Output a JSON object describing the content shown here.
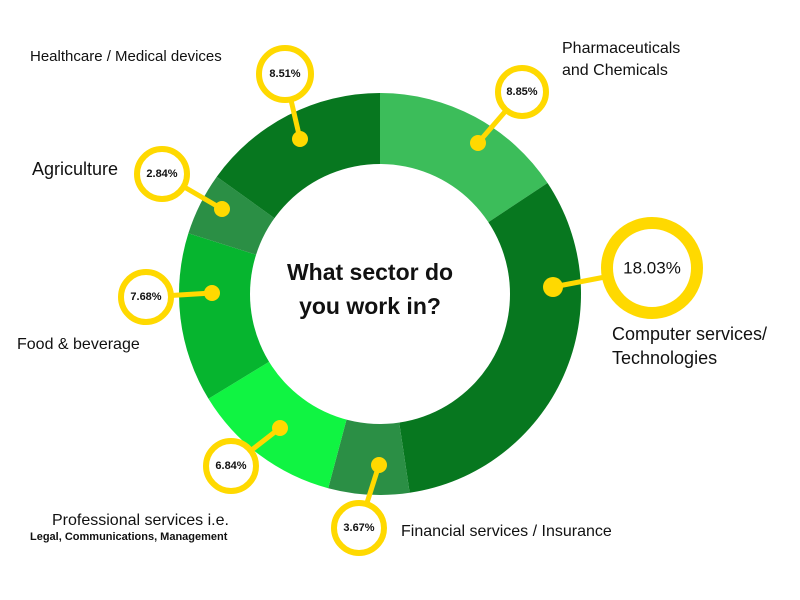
{
  "chart_data": {
    "type": "pie",
    "title": "What sector do you work in?",
    "slices": [
      {
        "label": "Pharmaceuticals and Chemicals",
        "label_lines": [
          "Pharmaceuticals",
          "and Chemicals"
        ],
        "value": 8.85,
        "value_label": "8.85%",
        "color": "#3cbd5a"
      },
      {
        "label": "Computer services/ Technologies",
        "label_lines": [
          "Computer services/",
          "Technologies"
        ],
        "value": 18.03,
        "value_label": "18.03%",
        "color": "#07771f"
      },
      {
        "label": "Financial services / Insurance",
        "label_lines": [
          "Financial services / Insurance"
        ],
        "value": 3.67,
        "value_label": "3.67%",
        "color": "#2b8f45"
      },
      {
        "label": "Professional services i.e. Legal, Communications, Management",
        "label_lines": [
          "Professional services i.e.",
          "Legal, Communications, Management"
        ],
        "value": 6.84,
        "value_label": "6.84%",
        "color": "#10f442"
      },
      {
        "label": "Food & beverage",
        "label_lines": [
          "Food & beverage"
        ],
        "value": 7.68,
        "value_label": "7.68%",
        "color": "#06b52f"
      },
      {
        "label": "Agriculture",
        "label_lines": [
          "Agriculture"
        ],
        "value": 2.84,
        "value_label": "2.84%",
        "color": "#2b8f45"
      },
      {
        "label": "Healthcare / Medical devices",
        "label_lines": [
          "Healthcare / Medical devices"
        ],
        "value": 8.51,
        "value_label": "8.51%",
        "color": "#07771f"
      }
    ],
    "callout_color": "#ffd900"
  }
}
